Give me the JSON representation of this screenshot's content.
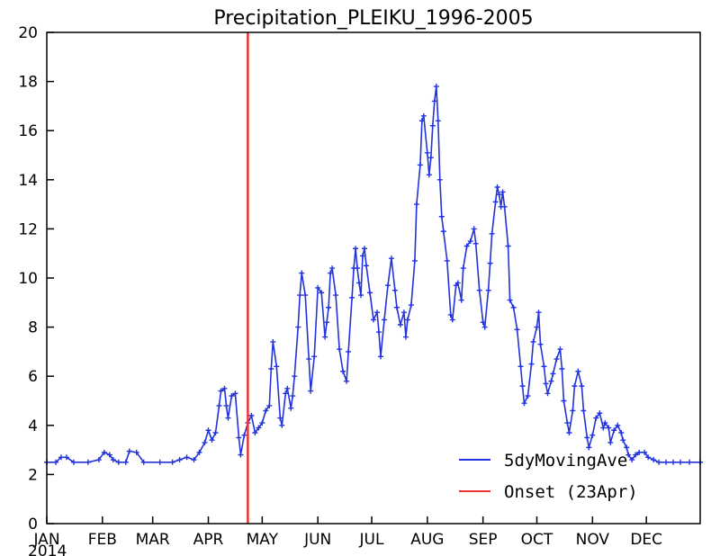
{
  "chart_data": {
    "type": "line",
    "title": "Precipitation_PLEIKU_1996-2005",
    "year_label": "2014",
    "xlabel": "",
    "ylabel": "",
    "ylim": [
      0,
      20
    ],
    "yticks": [
      0,
      2,
      4,
      6,
      8,
      10,
      12,
      14,
      16,
      18,
      20
    ],
    "x_tick_labels": [
      {
        "label": "JAN",
        "date": "2014-01-01"
      },
      {
        "label": "FEB",
        "date": "2014-02-01"
      },
      {
        "label": "MAR",
        "date": "2014-03-01"
      },
      {
        "label": "APR",
        "date": "2014-04-01"
      },
      {
        "label": "MAY",
        "date": "2014-05-01"
      },
      {
        "label": "JUN",
        "date": "2014-06-01"
      },
      {
        "label": "JUL",
        "date": "2014-07-01"
      },
      {
        "label": "AUG",
        "date": "2014-08-01"
      },
      {
        "label": "SEP",
        "date": "2014-09-01"
      },
      {
        "label": "OCT",
        "date": "2014-10-01"
      },
      {
        "label": "NOV",
        "date": "2014-11-01"
      },
      {
        "label": "DEC",
        "date": "2014-12-01"
      }
    ],
    "xlim": [
      "2014-01-01",
      "2014-12-31"
    ],
    "grid": false,
    "legend_position": "bottom-right",
    "series": [
      {
        "name": "5dyMovingAve",
        "color": "#2233dd",
        "marker": "+",
        "points": [
          [
            "2014-01-01",
            2.5
          ],
          [
            "2014-01-06",
            2.5
          ],
          [
            "2014-01-09",
            2.7
          ],
          [
            "2014-01-12",
            2.7
          ],
          [
            "2014-01-16",
            2.5
          ],
          [
            "2014-01-24",
            2.5
          ],
          [
            "2014-01-30",
            2.6
          ],
          [
            "2014-02-02",
            2.9
          ],
          [
            "2014-02-05",
            2.8
          ],
          [
            "2014-02-07",
            2.6
          ],
          [
            "2014-02-10",
            2.5
          ],
          [
            "2014-02-14",
            2.5
          ],
          [
            "2014-02-16",
            2.95
          ],
          [
            "2014-02-20",
            2.9
          ],
          [
            "2014-02-24",
            2.5
          ],
          [
            "2014-03-05",
            2.5
          ],
          [
            "2014-03-12",
            2.5
          ],
          [
            "2014-03-16",
            2.6
          ],
          [
            "2014-03-20",
            2.7
          ],
          [
            "2014-03-24",
            2.6
          ],
          [
            "2014-03-27",
            2.9
          ],
          [
            "2014-03-30",
            3.3
          ],
          [
            "2014-04-01",
            3.8
          ],
          [
            "2014-04-03",
            3.4
          ],
          [
            "2014-04-05",
            3.7
          ],
          [
            "2014-04-07",
            4.8
          ],
          [
            "2014-04-08",
            5.4
          ],
          [
            "2014-04-10",
            5.5
          ],
          [
            "2014-04-11",
            4.8
          ],
          [
            "2014-04-12",
            4.3
          ],
          [
            "2014-04-14",
            5.2
          ],
          [
            "2014-04-16",
            5.3
          ],
          [
            "2014-04-18",
            3.5
          ],
          [
            "2014-04-19",
            2.8
          ],
          [
            "2014-04-21",
            3.6
          ],
          [
            "2014-04-23",
            4.1
          ],
          [
            "2014-04-25",
            4.4
          ],
          [
            "2014-04-27",
            3.7
          ],
          [
            "2014-04-29",
            3.9
          ],
          [
            "2014-05-01",
            4.1
          ],
          [
            "2014-05-03",
            4.6
          ],
          [
            "2014-05-05",
            4.8
          ],
          [
            "2014-05-06",
            6.3
          ],
          [
            "2014-05-07",
            7.4
          ],
          [
            "2014-05-09",
            6.4
          ],
          [
            "2014-05-11",
            4.3
          ],
          [
            "2014-05-12",
            4.0
          ],
          [
            "2014-05-14",
            5.3
          ],
          [
            "2014-05-15",
            5.5
          ],
          [
            "2014-05-17",
            4.7
          ],
          [
            "2014-05-18",
            5.2
          ],
          [
            "2014-05-19",
            6.0
          ],
          [
            "2014-05-21",
            8.0
          ],
          [
            "2014-05-22",
            9.3
          ],
          [
            "2014-05-23",
            10.2
          ],
          [
            "2014-05-25",
            9.3
          ],
          [
            "2014-05-27",
            6.7
          ],
          [
            "2014-05-28",
            5.4
          ],
          [
            "2014-05-30",
            6.8
          ],
          [
            "2014-06-01",
            9.6
          ],
          [
            "2014-06-03",
            9.4
          ],
          [
            "2014-06-05",
            7.6
          ],
          [
            "2014-06-06",
            8.2
          ],
          [
            "2014-06-07",
            8.8
          ],
          [
            "2014-06-08",
            10.2
          ],
          [
            "2014-06-09",
            10.4
          ],
          [
            "2014-06-11",
            9.3
          ],
          [
            "2014-06-13",
            7.1
          ],
          [
            "2014-06-15",
            6.2
          ],
          [
            "2014-06-17",
            5.8
          ],
          [
            "2014-06-18",
            7.0
          ],
          [
            "2014-06-20",
            9.2
          ],
          [
            "2014-06-21",
            10.4
          ],
          [
            "2014-06-22",
            11.2
          ],
          [
            "2014-06-23",
            10.4
          ],
          [
            "2014-06-24",
            9.8
          ],
          [
            "2014-06-25",
            9.3
          ],
          [
            "2014-06-26",
            10.9
          ],
          [
            "2014-06-27",
            11.2
          ],
          [
            "2014-06-28",
            10.5
          ],
          [
            "2014-06-30",
            9.4
          ],
          [
            "2014-07-02",
            8.3
          ],
          [
            "2014-07-04",
            8.6
          ],
          [
            "2014-07-05",
            7.8
          ],
          [
            "2014-07-06",
            6.8
          ],
          [
            "2014-07-08",
            8.3
          ],
          [
            "2014-07-10",
            9.7
          ],
          [
            "2014-07-12",
            10.8
          ],
          [
            "2014-07-14",
            9.5
          ],
          [
            "2014-07-15",
            8.8
          ],
          [
            "2014-07-17",
            8.1
          ],
          [
            "2014-07-19",
            8.6
          ],
          [
            "2014-07-20",
            7.6
          ],
          [
            "2014-07-21",
            8.3
          ],
          [
            "2014-07-23",
            8.9
          ],
          [
            "2014-07-25",
            10.7
          ],
          [
            "2014-07-26",
            13.0
          ],
          [
            "2014-07-28",
            14.6
          ],
          [
            "2014-07-29",
            16.4
          ],
          [
            "2014-07-30",
            16.6
          ],
          [
            "2014-08-01",
            15.1
          ],
          [
            "2014-08-02",
            14.2
          ],
          [
            "2014-08-03",
            14.9
          ],
          [
            "2014-08-04",
            16.2
          ],
          [
            "2014-08-05",
            17.2
          ],
          [
            "2014-08-06",
            17.8
          ],
          [
            "2014-08-07",
            16.4
          ],
          [
            "2014-08-08",
            14.0
          ],
          [
            "2014-08-09",
            12.5
          ],
          [
            "2014-08-10",
            11.9
          ],
          [
            "2014-08-12",
            10.7
          ],
          [
            "2014-08-14",
            8.5
          ],
          [
            "2014-08-15",
            8.3
          ],
          [
            "2014-08-17",
            9.7
          ],
          [
            "2014-08-18",
            9.8
          ],
          [
            "2014-08-20",
            9.1
          ],
          [
            "2014-08-21",
            10.4
          ],
          [
            "2014-08-23",
            11.3
          ],
          [
            "2014-08-25",
            11.5
          ],
          [
            "2014-08-27",
            12.0
          ],
          [
            "2014-08-28",
            11.4
          ],
          [
            "2014-08-30",
            9.5
          ],
          [
            "2014-09-01",
            8.2
          ],
          [
            "2014-09-02",
            8.0
          ],
          [
            "2014-09-04",
            9.5
          ],
          [
            "2014-09-05",
            10.6
          ],
          [
            "2014-09-06",
            11.8
          ],
          [
            "2014-09-08",
            13.1
          ],
          [
            "2014-09-09",
            13.7
          ],
          [
            "2014-09-10",
            13.4
          ],
          [
            "2014-09-11",
            12.9
          ],
          [
            "2014-09-12",
            13.5
          ],
          [
            "2014-09-13",
            12.9
          ],
          [
            "2014-09-15",
            11.3
          ],
          [
            "2014-09-16",
            9.1
          ],
          [
            "2014-09-18",
            8.8
          ],
          [
            "2014-09-20",
            7.9
          ],
          [
            "2014-09-22",
            6.4
          ],
          [
            "2014-09-23",
            5.6
          ],
          [
            "2014-09-24",
            4.9
          ],
          [
            "2014-09-26",
            5.2
          ],
          [
            "2014-09-28",
            6.5
          ],
          [
            "2014-09-29",
            7.4
          ],
          [
            "2014-10-01",
            8.0
          ],
          [
            "2014-10-02",
            8.6
          ],
          [
            "2014-10-03",
            7.3
          ],
          [
            "2014-10-05",
            6.4
          ],
          [
            "2014-10-06",
            5.7
          ],
          [
            "2014-10-07",
            5.3
          ],
          [
            "2014-10-09",
            5.8
          ],
          [
            "2014-10-10",
            6.1
          ],
          [
            "2014-10-12",
            6.7
          ],
          [
            "2014-10-14",
            7.1
          ],
          [
            "2014-10-15",
            6.3
          ],
          [
            "2014-10-16",
            5.0
          ],
          [
            "2014-10-18",
            4.1
          ],
          [
            "2014-10-19",
            3.7
          ],
          [
            "2014-10-21",
            4.6
          ],
          [
            "2014-10-22",
            5.6
          ],
          [
            "2014-10-24",
            6.2
          ],
          [
            "2014-10-26",
            5.6
          ],
          [
            "2014-10-27",
            4.6
          ],
          [
            "2014-10-29",
            3.5
          ],
          [
            "2014-10-30",
            3.1
          ],
          [
            "2014-11-01",
            3.6
          ],
          [
            "2014-11-03",
            4.3
          ],
          [
            "2014-11-05",
            4.5
          ],
          [
            "2014-11-07",
            3.9
          ],
          [
            "2014-11-08",
            4.1
          ],
          [
            "2014-11-10",
            3.9
          ],
          [
            "2014-11-11",
            3.3
          ],
          [
            "2014-11-13",
            3.8
          ],
          [
            "2014-11-15",
            4.0
          ],
          [
            "2014-11-17",
            3.7
          ],
          [
            "2014-11-18",
            3.4
          ],
          [
            "2014-11-20",
            3.1
          ],
          [
            "2014-11-21",
            2.8
          ],
          [
            "2014-11-23",
            2.6
          ],
          [
            "2014-11-25",
            2.8
          ],
          [
            "2014-11-27",
            2.9
          ],
          [
            "2014-11-30",
            2.9
          ],
          [
            "2014-12-02",
            2.7
          ],
          [
            "2014-12-05",
            2.6
          ],
          [
            "2014-12-08",
            2.5
          ],
          [
            "2014-12-12",
            2.5
          ],
          [
            "2014-12-16",
            2.5
          ],
          [
            "2014-12-20",
            2.5
          ],
          [
            "2014-12-25",
            2.5
          ],
          [
            "2014-12-31",
            2.5
          ]
        ]
      },
      {
        "name": "Onset (23Apr)",
        "color": "#ee3333",
        "type": "vertical-line",
        "x": "2014-04-23"
      }
    ]
  }
}
